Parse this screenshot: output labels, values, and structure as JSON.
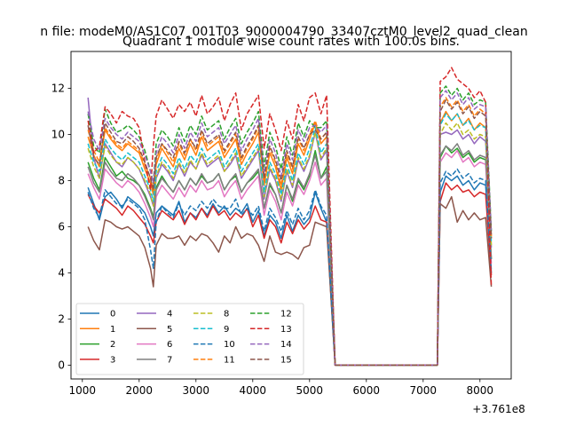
{
  "chart_data": {
    "type": "line",
    "suptitle": "n file: modeM0/AS1C07_001T03_9000004790_33407cztM0_level2_quad_clean",
    "title": "Quadrant 1 module wise count rates with 100.0s bins.",
    "xlabel": "",
    "ylabel": "",
    "x_offset_label": "+3.761e8",
    "xlim": [
      800,
      8550
    ],
    "ylim": [
      -0.6,
      13.6
    ],
    "xticks": [
      1000,
      2000,
      3000,
      4000,
      5000,
      6000,
      7000,
      8000
    ],
    "yticks": [
      0,
      2,
      4,
      6,
      8,
      10,
      12
    ],
    "grid": false,
    "legend": {
      "location": "lower-left",
      "columns": 4
    },
    "x": [
      1100,
      1200,
      1300,
      1400,
      1500,
      1600,
      1700,
      1800,
      1900,
      2000,
      2100,
      2200,
      2250,
      2300,
      2400,
      2500,
      2600,
      2700,
      2800,
      2900,
      3000,
      3100,
      3200,
      3300,
      3400,
      3500,
      3600,
      3700,
      3800,
      3900,
      4000,
      4100,
      4200,
      4300,
      4400,
      4500,
      4600,
      4700,
      4800,
      4900,
      5000,
      5100,
      5200,
      5300,
      5450,
      7250,
      7300,
      7400,
      7500,
      7600,
      7700,
      7800,
      7900,
      8000,
      8100,
      8200
    ],
    "series": [
      {
        "name": "0",
        "color": "#1f77b4",
        "dash": "solid",
        "values": [
          7.7,
          7.0,
          6.3,
          7.3,
          7.5,
          7.2,
          6.8,
          7.3,
          7.1,
          6.9,
          6.6,
          6.0,
          5.6,
          6.6,
          6.9,
          6.7,
          6.5,
          7.1,
          6.2,
          6.6,
          6.4,
          6.8,
          6.5,
          7.0,
          6.6,
          6.9,
          6.5,
          6.8,
          6.6,
          7.0,
          6.2,
          6.7,
          5.6,
          6.5,
          6.2,
          5.5,
          6.5,
          5.8,
          6.5,
          6.1,
          6.4,
          7.5,
          6.8,
          6.2,
          0,
          0,
          7.5,
          8.2,
          8.0,
          8.2,
          7.8,
          8.0,
          7.6,
          7.9,
          7.8,
          4.0
        ]
      },
      {
        "name": "1",
        "color": "#ff7f0e",
        "dash": "solid",
        "values": [
          9.9,
          9.1,
          8.6,
          10.2,
          9.8,
          9.5,
          9.3,
          9.6,
          9.4,
          9.2,
          8.5,
          7.9,
          7.4,
          8.7,
          9.4,
          9.0,
          8.6,
          9.4,
          8.9,
          9.6,
          9.1,
          9.9,
          9.3,
          9.5,
          9.7,
          9.0,
          9.4,
          9.8,
          8.7,
          9.2,
          9.6,
          10.1,
          7.8,
          9.2,
          8.6,
          7.6,
          9.0,
          8.3,
          9.6,
          9.1,
          9.8,
          10.5,
          9.6,
          9.9,
          0,
          0,
          10.5,
          11.0,
          10.6,
          10.9,
          10.4,
          10.7,
          10.2,
          10.5,
          10.3,
          5.5
        ]
      },
      {
        "name": "2",
        "color": "#2ca02c",
        "dash": "solid",
        "values": [
          8.8,
          8.1,
          7.6,
          9.0,
          8.6,
          8.2,
          8.4,
          8.1,
          8.0,
          7.8,
          7.4,
          6.8,
          6.4,
          7.7,
          8.2,
          7.8,
          7.5,
          8.0,
          7.6,
          8.1,
          7.8,
          8.2,
          7.9,
          8.0,
          8.3,
          7.6,
          8.0,
          8.2,
          7.5,
          7.9,
          8.1,
          8.4,
          6.8,
          7.8,
          7.4,
          6.6,
          7.8,
          7.1,
          8.0,
          7.6,
          8.2,
          9.3,
          8.1,
          8.6,
          0,
          0,
          9.0,
          9.5,
          9.2,
          9.4,
          9.0,
          9.2,
          8.8,
          9.0,
          8.9,
          4.6
        ]
      },
      {
        "name": "3",
        "color": "#d62728",
        "dash": "solid",
        "values": [
          7.4,
          6.9,
          6.6,
          7.2,
          7.0,
          6.8,
          6.5,
          6.9,
          6.7,
          6.4,
          6.1,
          5.6,
          5.3,
          6.2,
          6.7,
          6.5,
          6.3,
          6.7,
          6.1,
          6.6,
          6.3,
          6.8,
          6.4,
          6.9,
          6.5,
          6.7,
          6.3,
          6.6,
          6.4,
          6.8,
          6.0,
          6.5,
          5.5,
          6.3,
          6.0,
          5.3,
          6.2,
          5.7,
          6.3,
          5.9,
          6.2,
          6.9,
          6.3,
          6.2,
          0,
          0,
          7.1,
          7.9,
          7.6,
          7.8,
          7.5,
          7.6,
          7.3,
          7.5,
          7.4,
          3.9
        ]
      },
      {
        "name": "4",
        "color": "#9467bd",
        "dash": "solid",
        "values": [
          11.6,
          9.0,
          8.1,
          9.6,
          9.2,
          8.8,
          8.6,
          9.0,
          8.8,
          8.5,
          7.9,
          7.3,
          6.9,
          8.1,
          8.7,
          8.4,
          8.0,
          8.7,
          8.2,
          8.8,
          8.5,
          9.1,
          8.6,
          8.8,
          9.0,
          8.4,
          8.7,
          9.1,
          8.1,
          8.5,
          8.9,
          9.3,
          7.2,
          8.5,
          8.0,
          7.1,
          8.4,
          7.7,
          8.9,
          8.4,
          9.0,
          10.1,
          8.9,
          9.3,
          0,
          0,
          10.0,
          10.1,
          10.0,
          10.2,
          9.8,
          10.0,
          9.6,
          9.9,
          9.7,
          5.1
        ]
      },
      {
        "name": "5",
        "color": "#8c564b",
        "dash": "solid",
        "values": [
          6.0,
          5.4,
          5.0,
          6.3,
          6.2,
          6.0,
          5.9,
          6.0,
          5.8,
          5.6,
          5.1,
          4.2,
          3.4,
          5.2,
          5.7,
          5.5,
          5.5,
          5.6,
          5.2,
          5.6,
          5.4,
          5.7,
          5.6,
          5.3,
          4.9,
          5.6,
          5.3,
          6.0,
          5.5,
          5.7,
          5.6,
          5.2,
          4.5,
          5.6,
          4.9,
          4.8,
          4.9,
          4.8,
          4.6,
          5.1,
          5.2,
          6.2,
          6.1,
          6.0,
          0,
          0,
          7.0,
          6.8,
          7.3,
          6.2,
          6.7,
          6.3,
          6.6,
          6.3,
          6.4,
          3.4
        ]
      },
      {
        "name": "6",
        "color": "#e377c2",
        "dash": "solid",
        "values": [
          8.3,
          7.7,
          7.2,
          8.5,
          8.2,
          7.9,
          7.7,
          8.0,
          7.8,
          7.5,
          7.0,
          6.4,
          6.0,
          7.3,
          7.8,
          7.5,
          7.2,
          7.7,
          7.3,
          7.8,
          7.5,
          8.0,
          7.6,
          7.7,
          8.0,
          7.3,
          7.7,
          8.0,
          7.2,
          7.6,
          7.9,
          8.2,
          6.5,
          7.6,
          7.1,
          6.3,
          7.5,
          6.9,
          7.8,
          7.4,
          8.0,
          8.8,
          7.8,
          8.1,
          0,
          0,
          8.8,
          9.2,
          9.0,
          9.3,
          8.8,
          9.0,
          8.6,
          8.8,
          8.7,
          4.4
        ]
      },
      {
        "name": "7",
        "color": "#7f7f7f",
        "dash": "solid",
        "values": [
          8.6,
          7.9,
          7.5,
          8.8,
          8.4,
          8.1,
          8.0,
          8.3,
          8.1,
          7.8,
          7.3,
          6.7,
          6.3,
          7.6,
          8.1,
          7.8,
          7.5,
          8.0,
          7.6,
          8.1,
          7.8,
          8.3,
          7.9,
          8.0,
          8.3,
          7.6,
          8.0,
          8.3,
          7.5,
          7.9,
          8.2,
          8.5,
          6.8,
          7.9,
          7.4,
          6.6,
          7.8,
          7.2,
          8.1,
          7.7,
          8.3,
          9.1,
          8.1,
          8.4,
          0,
          0,
          9.1,
          9.5,
          9.3,
          9.6,
          9.1,
          9.3,
          8.9,
          9.1,
          9.0,
          4.6
        ]
      },
      {
        "name": "8",
        "color": "#bcbd22",
        "dash": "dashed",
        "values": [
          9.4,
          8.6,
          8.1,
          9.5,
          9.1,
          8.8,
          8.7,
          9.0,
          8.8,
          8.5,
          8.0,
          7.4,
          6.9,
          8.2,
          8.8,
          8.5,
          8.1,
          8.8,
          8.3,
          8.9,
          8.5,
          9.2,
          8.7,
          8.9,
          9.1,
          8.4,
          8.8,
          9.2,
          8.2,
          8.6,
          9.0,
          9.4,
          7.3,
          8.6,
          8.1,
          7.2,
          8.5,
          7.8,
          9.0,
          8.5,
          9.1,
          10.1,
          9.0,
          9.4,
          0,
          0,
          10.0,
          10.5,
          10.2,
          10.5,
          10.0,
          10.2,
          9.8,
          10.0,
          9.9,
          5.2
        ]
      },
      {
        "name": "9",
        "color": "#17becf",
        "dash": "dashed",
        "values": [
          9.6,
          8.8,
          8.4,
          9.8,
          9.4,
          9.1,
          8.9,
          9.2,
          9.0,
          8.8,
          8.2,
          7.6,
          7.1,
          8.4,
          9.0,
          8.7,
          8.3,
          9.0,
          8.5,
          9.1,
          8.8,
          9.4,
          8.9,
          9.1,
          9.3,
          8.6,
          9.0,
          9.4,
          8.4,
          8.8,
          9.2,
          9.6,
          7.5,
          8.8,
          8.3,
          7.4,
          8.7,
          8.0,
          9.2,
          8.7,
          9.4,
          10.3,
          9.2,
          9.6,
          0,
          0,
          10.4,
          10.9,
          10.6,
          10.9,
          10.4,
          10.6,
          10.2,
          10.4,
          10.3,
          5.3
        ]
      },
      {
        "name": "10",
        "color": "#1f77b4",
        "dash": "dashed",
        "values": [
          7.5,
          6.8,
          6.4,
          7.6,
          7.3,
          7.0,
          6.9,
          7.2,
          7.0,
          6.8,
          6.3,
          5.0,
          4.2,
          6.2,
          6.9,
          6.6,
          6.4,
          7.0,
          6.5,
          6.9,
          6.7,
          7.1,
          6.8,
          7.2,
          6.9,
          6.8,
          6.8,
          7.2,
          6.5,
          6.8,
          6.5,
          6.9,
          5.8,
          6.8,
          6.4,
          5.8,
          6.7,
          6.1,
          6.8,
          6.3,
          6.7,
          7.6,
          6.9,
          6.5,
          0,
          0,
          7.9,
          8.4,
          8.2,
          8.5,
          8.1,
          8.3,
          7.9,
          8.1,
          8.0,
          4.1
        ]
      },
      {
        "name": "11",
        "color": "#ff7f0e",
        "dash": "dashed",
        "values": [
          10.2,
          9.3,
          8.8,
          10.3,
          9.9,
          9.6,
          9.4,
          9.7,
          9.5,
          9.3,
          8.7,
          8.1,
          7.6,
          8.9,
          9.6,
          9.2,
          8.8,
          9.6,
          9.1,
          9.8,
          9.3,
          10.1,
          9.5,
          9.7,
          9.9,
          9.2,
          9.6,
          10.0,
          8.9,
          9.4,
          9.8,
          10.3,
          8.0,
          9.4,
          8.8,
          7.8,
          9.2,
          8.5,
          9.8,
          9.3,
          10.0,
          10.6,
          9.8,
          10.1,
          0,
          0,
          11.2,
          11.6,
          11.2,
          11.5,
          11.0,
          11.3,
          10.8,
          11.1,
          10.9,
          5.6
        ]
      },
      {
        "name": "12",
        "color": "#2ca02c",
        "dash": "dashed",
        "values": [
          10.9,
          9.5,
          9.2,
          11.1,
          10.5,
          10.1,
          10.2,
          10.4,
          10.2,
          9.9,
          9.3,
          8.4,
          7.9,
          9.6,
          10.2,
          9.9,
          9.5,
          10.3,
          9.7,
          10.4,
          10.0,
          10.8,
          10.2,
          10.4,
          10.6,
          9.8,
          10.3,
          10.7,
          9.6,
          10.1,
          10.5,
          11.0,
          8.6,
          10.1,
          9.5,
          8.5,
          9.9,
          9.1,
          10.5,
          9.9,
          10.6,
          10.3,
          10.3,
          10.6,
          0,
          0,
          11.8,
          12.1,
          11.7,
          12.0,
          11.5,
          11.8,
          11.3,
          11.5,
          11.4,
          5.8
        ]
      },
      {
        "name": "13",
        "color": "#d62728",
        "dash": "dashed",
        "values": [
          10.6,
          9.2,
          9.5,
          11.2,
          10.9,
          10.5,
          11.0,
          10.8,
          10.7,
          10.3,
          8.8,
          7.6,
          9.5,
          10.8,
          11.5,
          11.1,
          10.7,
          11.3,
          11.0,
          11.4,
          10.8,
          11.7,
          10.9,
          11.2,
          11.6,
          10.6,
          11.3,
          11.8,
          10.2,
          10.9,
          11.3,
          11.7,
          9.4,
          10.9,
          10.2,
          9.3,
          10.6,
          9.8,
          11.3,
          10.6,
          11.6,
          11.8,
          10.9,
          11.7,
          0,
          0,
          12.3,
          12.5,
          12.9,
          12.4,
          12.2,
          12.0,
          11.6,
          11.9,
          11.4,
          3.4
        ]
      },
      {
        "name": "14",
        "color": "#9467bd",
        "dash": "dashed",
        "values": [
          11.0,
          9.8,
          9.3,
          10.7,
          10.3,
          10.0,
          9.8,
          10.1,
          9.9,
          9.7,
          9.1,
          8.4,
          7.9,
          9.2,
          9.9,
          9.6,
          9.2,
          10.0,
          9.4,
          10.1,
          9.7,
          10.5,
          9.9,
          10.1,
          10.3,
          9.6,
          10.0,
          10.4,
          9.3,
          9.8,
          10.2,
          10.7,
          8.3,
          9.8,
          9.2,
          8.2,
          9.6,
          8.9,
          10.2,
          9.7,
          10.3,
          10.4,
          10.1,
          10.4,
          0,
          0,
          11.6,
          11.9,
          11.5,
          11.8,
          11.3,
          11.6,
          11.1,
          11.3,
          11.2,
          5.7
        ]
      },
      {
        "name": "15",
        "color": "#8c564b",
        "dash": "dashed",
        "values": [
          10.4,
          9.0,
          8.7,
          10.5,
          10.1,
          9.7,
          9.6,
          9.9,
          9.7,
          9.4,
          8.8,
          8.1,
          7.6,
          9.0,
          9.6,
          9.3,
          9.0,
          9.7,
          9.2,
          9.8,
          9.4,
          10.2,
          9.6,
          9.8,
          10.0,
          9.3,
          9.7,
          10.1,
          9.0,
          9.5,
          9.9,
          10.4,
          8.1,
          9.5,
          8.9,
          8.0,
          9.3,
          8.6,
          9.9,
          9.4,
          10.0,
          10.2,
          9.8,
          10.1,
          0,
          0,
          11.0,
          11.5,
          11.1,
          11.4,
          10.9,
          11.2,
          10.7,
          11.0,
          10.8,
          5.5
        ]
      }
    ]
  }
}
